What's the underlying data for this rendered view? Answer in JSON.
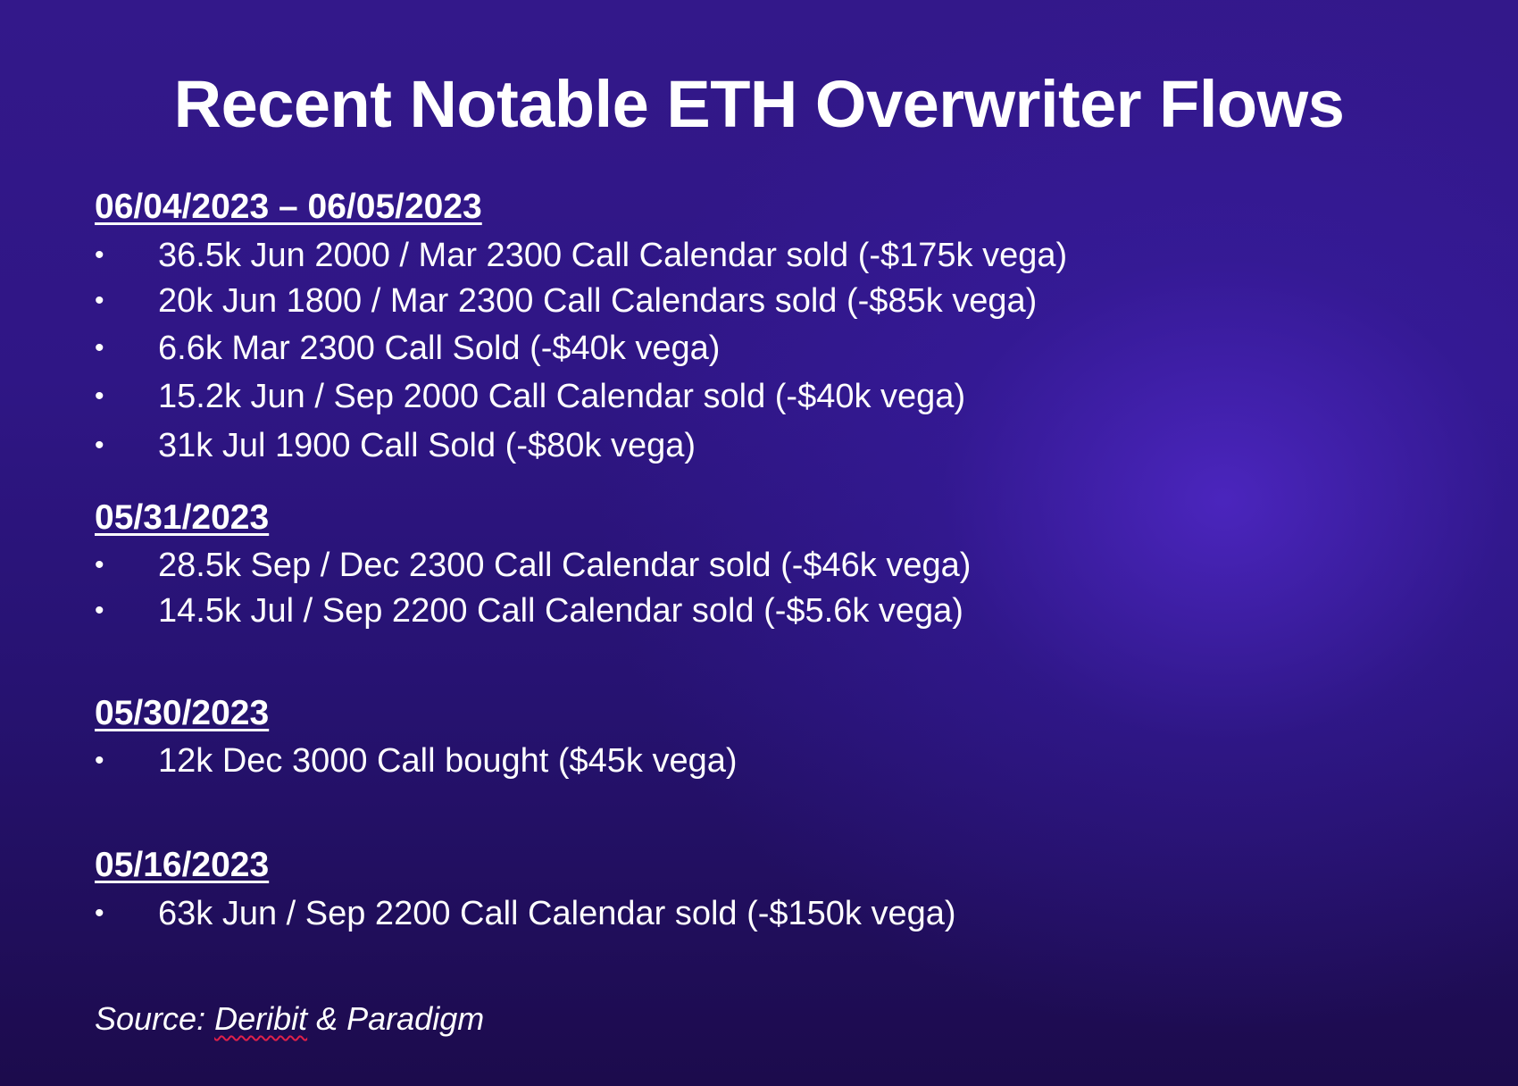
{
  "title": "Recent Notable ETH Overwriter Flows",
  "sections": [
    {
      "heading": "06/04/2023 – 06/05/2023",
      "items": [
        "36.5k Jun 2000 / Mar 2300 Call Calendar sold (-$175k vega)",
        "20k Jun 1800 / Mar 2300 Call Calendars sold (-$85k vega)",
        "6.6k Mar 2300 Call Sold (-$40k vega)",
        "15.2k Jun / Sep 2000 Call Calendar sold (-$40k vega)",
        "31k Jul 1900 Call Sold (-$80k vega)"
      ]
    },
    {
      "heading": "05/31/2023",
      "items": [
        "28.5k Sep / Dec 2300 Call Calendar sold (-$46k vega)",
        "14.5k Jul / Sep 2200 Call Calendar sold (-$5.6k vega)"
      ]
    },
    {
      "heading": "05/30/2023",
      "items": [
        "12k Dec 3000 Call bought ($45k vega)"
      ]
    },
    {
      "heading": "05/16/2023",
      "items": [
        "63k Jun / Sep 2200 Call Calendar sold (-$150k vega)"
      ]
    }
  ],
  "bullet_char": "•",
  "source": {
    "prefix": "Source: ",
    "name1": "Deribit",
    "sep": " & ",
    "name2": "Paradigm"
  }
}
